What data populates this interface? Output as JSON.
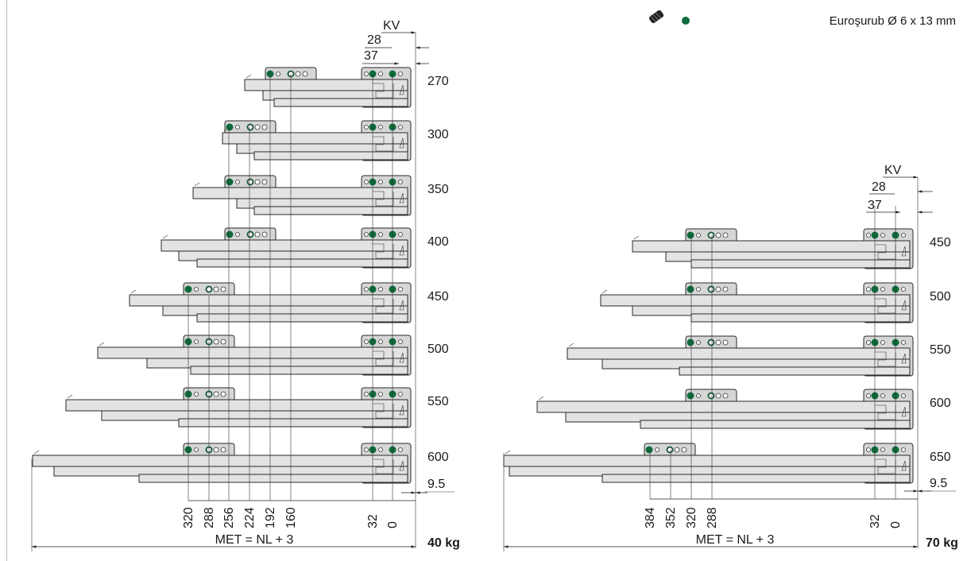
{
  "legend": {
    "screw_icon": "screw-icon",
    "dot_color": "#0e6b3a",
    "text": "Euroşurub Ø 6 x 13 mm"
  },
  "left": {
    "kv_label": "KV",
    "offset_28": "28",
    "offset_37": "37",
    "lengths": [
      "270",
      "300",
      "350",
      "400",
      "450",
      "500",
      "550",
      "600"
    ],
    "gap_label": "9.5",
    "bottom_dims": [
      "320",
      "288",
      "256",
      "224",
      "192",
      "160",
      "32",
      "0"
    ],
    "met_label": "MET = NL + 3",
    "load": "40 kg"
  },
  "right": {
    "kv_label": "KV",
    "offset_28": "28",
    "offset_37": "37",
    "lengths": [
      "450",
      "500",
      "550",
      "600",
      "650"
    ],
    "gap_label": "9.5",
    "bottom_dims": [
      "384",
      "352",
      "320",
      "288",
      "32",
      "0"
    ],
    "met_label": "MET = NL + 3",
    "load": "70 kg"
  }
}
